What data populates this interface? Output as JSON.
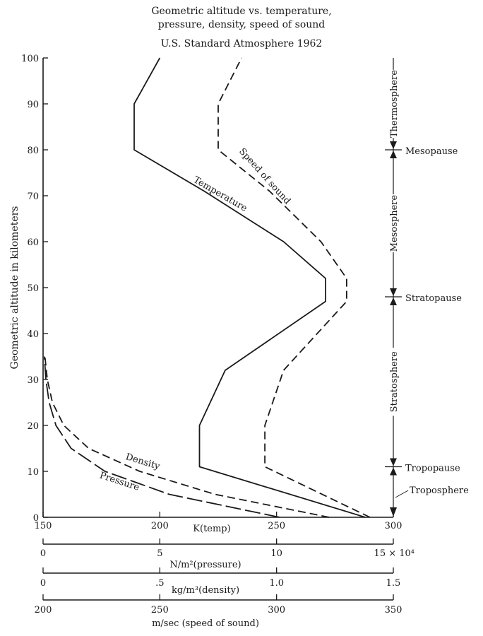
{
  "chart_data": {
    "type": "line",
    "title_lines": [
      "Geometric altitude vs. temperature,",
      "pressure, density, speed of sound"
    ],
    "subtitle": "U.S. Standard Atmosphere 1962",
    "ylabel": "Geometric altitude in kilometers",
    "ylim": [
      0,
      100
    ],
    "y_ticks": [
      0,
      10,
      20,
      30,
      40,
      50,
      60,
      70,
      80,
      90,
      100
    ],
    "grid": false,
    "axes": [
      {
        "label": "K(temp)",
        "range": [
          150,
          300
        ],
        "ticks": [
          {
            "v": 150,
            "t": "150"
          },
          {
            "v": 200,
            "t": "200"
          },
          {
            "v": 250,
            "t": "250"
          },
          {
            "v": 300,
            "t": "300"
          }
        ]
      },
      {
        "label": "N/m²(pressure)",
        "range": [
          0,
          150000
        ],
        "ticks": [
          {
            "v": 0,
            "t": "0"
          },
          {
            "v": 50000,
            "t": "5"
          },
          {
            "v": 100000,
            "t": "10"
          },
          {
            "v": 150000,
            "t": "15 × 10⁴"
          }
        ]
      },
      {
        "label": "kg/m³(density)",
        "range": [
          0,
          1.5
        ],
        "ticks": [
          {
            "v": 0,
            "t": "0"
          },
          {
            "v": 0.5,
            "t": ".5"
          },
          {
            "v": 1.0,
            "t": "1.0"
          },
          {
            "v": 1.5,
            "t": "1.5"
          }
        ]
      },
      {
        "label": "m/sec (speed of sound)",
        "range": [
          200,
          350
        ],
        "ticks": [
          {
            "v": 200,
            "t": "200"
          },
          {
            "v": 250,
            "t": "250"
          },
          {
            "v": 300,
            "t": "300"
          },
          {
            "v": 350,
            "t": "350"
          }
        ]
      }
    ],
    "series": [
      {
        "name": "Temperature",
        "axis": 0,
        "style": "solid",
        "x": [
          288,
          217,
          217,
          228,
          271,
          271,
          253,
          219,
          189,
          189,
          200
        ],
        "y": [
          0,
          11,
          20,
          32,
          47,
          52,
          60,
          71,
          80,
          90,
          100
        ]
      },
      {
        "name": "Speed of sound",
        "axis": 3,
        "style": "dashed",
        "x": [
          340,
          295,
          295,
          303,
          330,
          330,
          319,
          297,
          275,
          275,
          285
        ],
        "y": [
          0,
          11,
          20,
          32,
          47,
          52,
          60,
          71,
          80,
          90,
          100
        ]
      },
      {
        "name": "Pressure",
        "axis": 1,
        "style": "longdash",
        "x": [
          101325,
          54000,
          26500,
          12000,
          5500,
          2600,
          1200,
          550
        ],
        "y": [
          0,
          5,
          10,
          15,
          20,
          25,
          30,
          35
        ]
      },
      {
        "name": "Density",
        "axis": 2,
        "style": "dashed",
        "x": [
          1.225,
          0.736,
          0.414,
          0.195,
          0.089,
          0.04,
          0.018,
          0.008
        ],
        "y": [
          0,
          5,
          10,
          15,
          20,
          25,
          30,
          35
        ]
      }
    ],
    "layers": [
      {
        "name": "Thermosphere",
        "from": 80,
        "to": 100
      },
      {
        "name": "Mesosphere",
        "from": 48,
        "to": 80
      },
      {
        "name": "Stratosphere",
        "from": 11,
        "to": 48
      },
      {
        "name": "Troposphere",
        "from": 0,
        "to": 11
      }
    ],
    "boundaries": [
      {
        "name": "Mesopause",
        "alt": 80
      },
      {
        "name": "Stratopause",
        "alt": 48
      },
      {
        "name": "Tropopause",
        "alt": 11
      }
    ]
  }
}
